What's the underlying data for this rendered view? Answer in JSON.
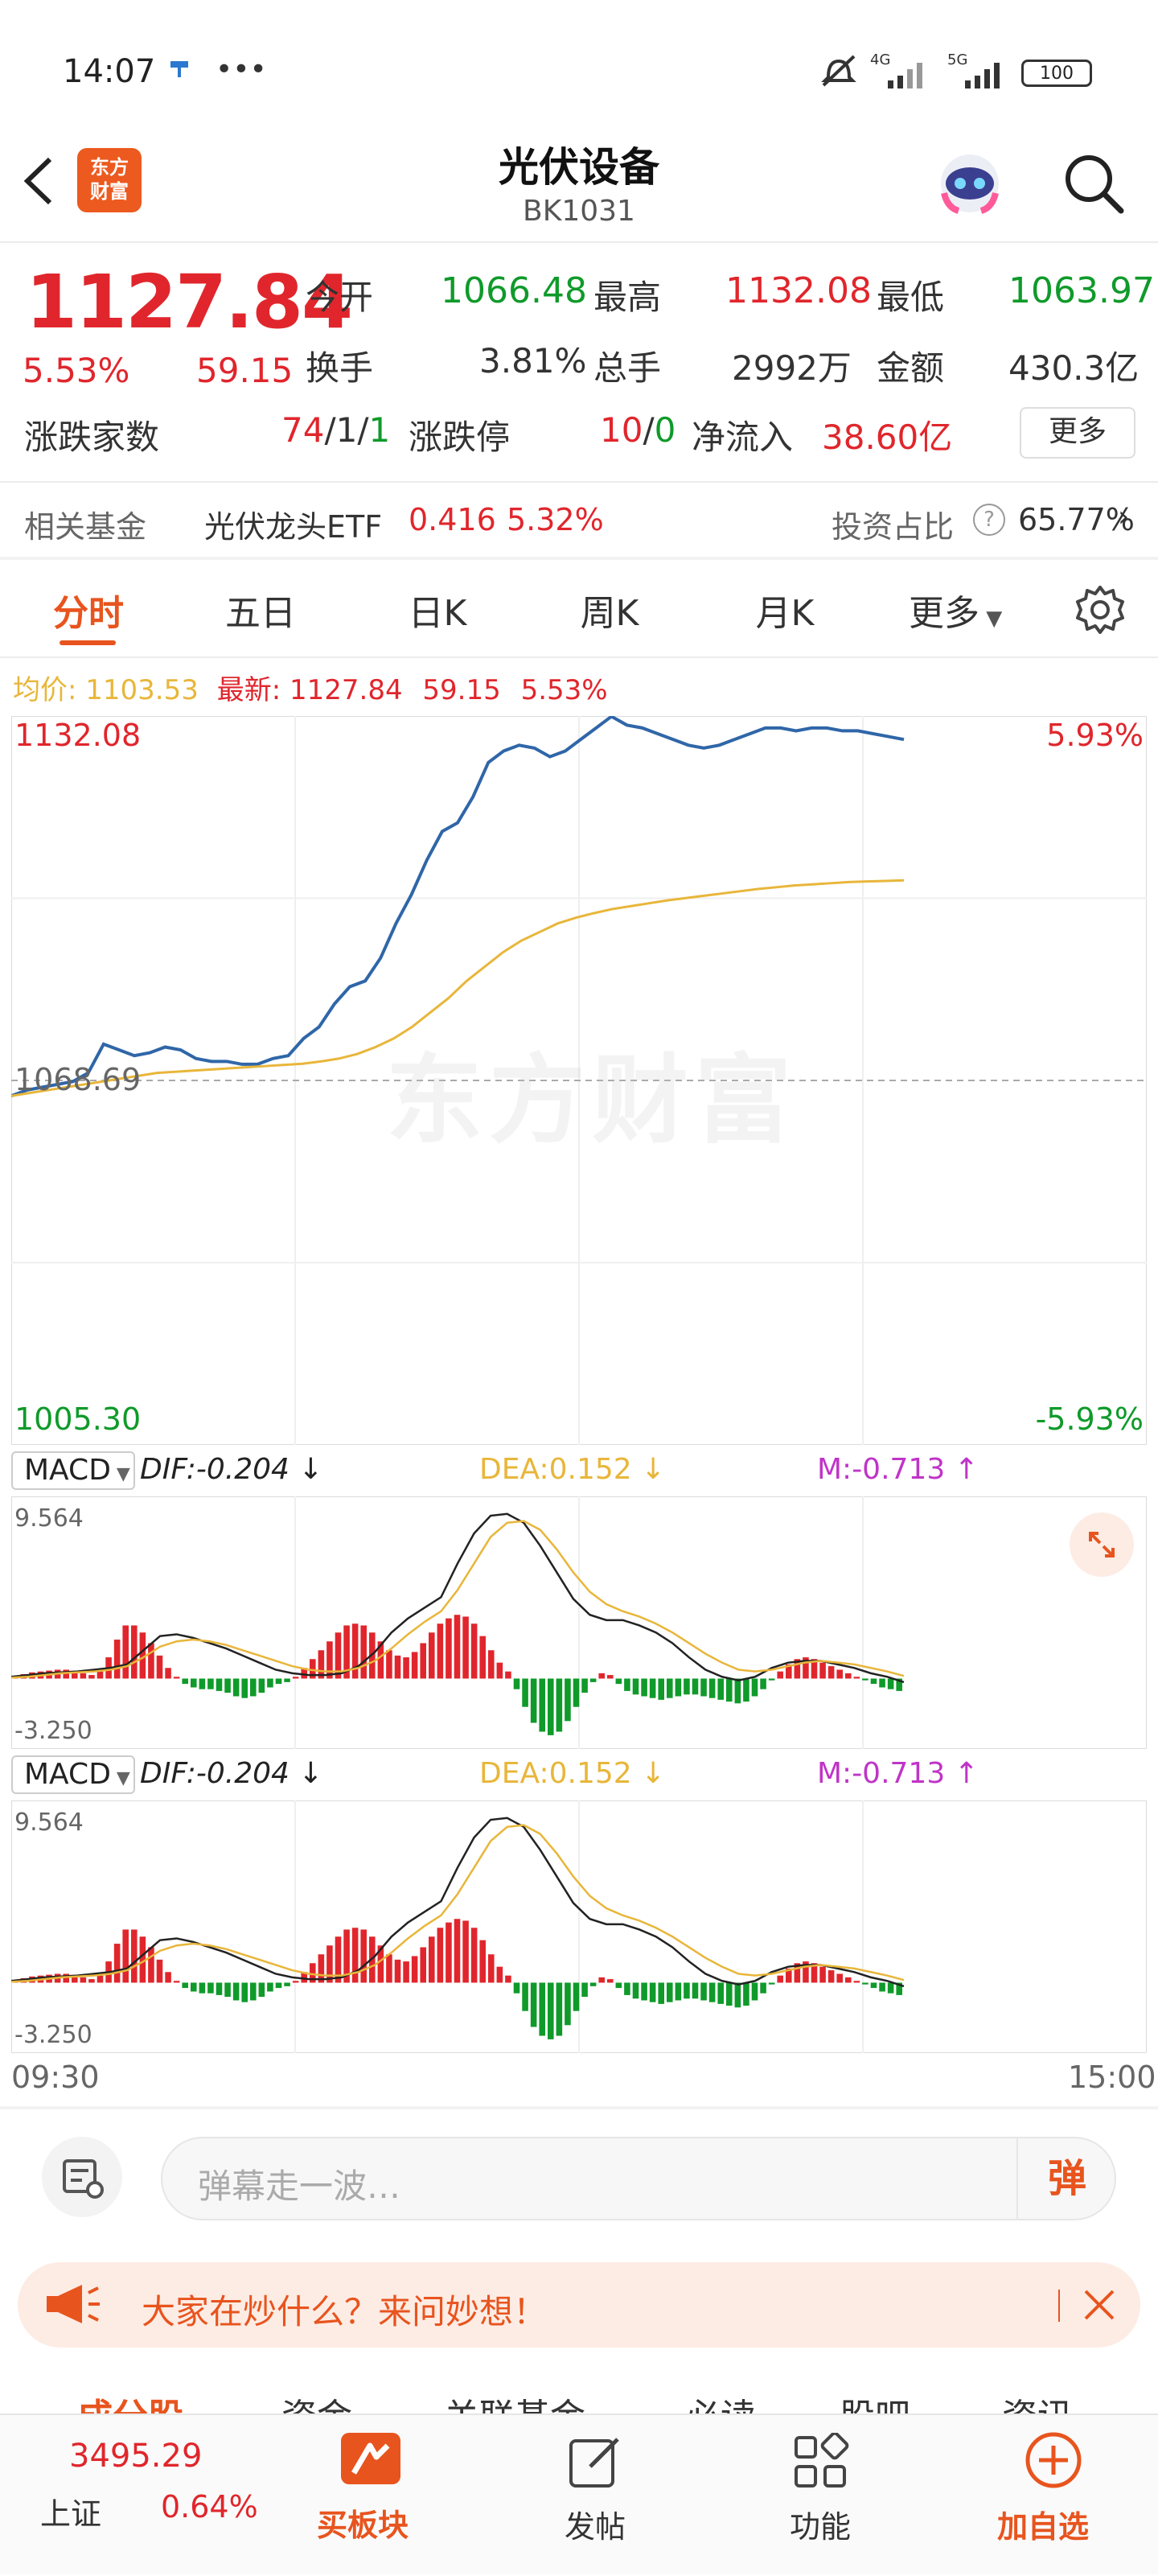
{
  "status_bar": {
    "time": "14:07",
    "battery": "100",
    "net1": "4G",
    "net2": "5G"
  },
  "header": {
    "logo_line1": "东方",
    "logo_line2": "财富",
    "title": "光伏设备",
    "code": "BK1031"
  },
  "quote": {
    "price": "1127.84",
    "change_pct": "5.53%",
    "change": "59.15",
    "open_label": "今开",
    "open": "1066.48",
    "high_label": "最高",
    "high": "1132.08",
    "low_label": "最低",
    "low": "1063.97",
    "turnover_label": "换手",
    "turnover": "3.81%",
    "volume_label": "总手",
    "volume": "2992万",
    "amount_label": "金额",
    "amount": "430.3亿",
    "breadth_label": "涨跌家数",
    "up": "74",
    "sep1": "/",
    "flat": "1",
    "sep2": "/",
    "down": "1",
    "limit_label": "涨跌停",
    "limit_up": "10",
    "limit_sep": "/",
    "limit_down": "0",
    "inflow_label": "净流入",
    "inflow": "38.60亿",
    "more": "更多"
  },
  "fund": {
    "label": "相关基金",
    "name": "光伏龙头ETF",
    "price": "0.416",
    "pct": "5.32%",
    "ratio_label": "投资占比",
    "ratio": "65.77%"
  },
  "tabs": [
    {
      "label": "分时"
    },
    {
      "label": "五日"
    },
    {
      "label": "日K"
    },
    {
      "label": "周K"
    },
    {
      "label": "月K"
    },
    {
      "label": "更多"
    }
  ],
  "chart_info": {
    "avg_label": "均价:",
    "avg": "1103.53",
    "latest_label": "最新:",
    "latest": "1127.84",
    "chg": "59.15",
    "pct": "5.53%"
  },
  "chart_data": [
    {
      "type": "line",
      "x_range": [
        "09:30",
        "15:00"
      ],
      "ylim": [
        1005.3,
        1132.08
      ],
      "y_top_label": "1132.08",
      "y_bottom_label": "1005.30",
      "y_top_pct": "5.93%",
      "y_bottom_pct": "-5.93%",
      "prev_close": 1068.69,
      "prev_close_label": "1068.69",
      "watermark": "东方财富",
      "series": [
        {
          "name": "price",
          "color": "#2f66a8",
          "values": [
            1066,
            1067,
            1067.5,
            1068,
            1068.5,
            1070,
            1075,
            1074,
            1073,
            1073.5,
            1074.5,
            1074,
            1072.5,
            1072,
            1072,
            1071.5,
            1071.5,
            1072.5,
            1073,
            1076,
            1078,
            1082,
            1085,
            1086,
            1090,
            1096,
            1101,
            1107,
            1112,
            1113.5,
            1118,
            1124,
            1126,
            1127,
            1126.5,
            1125,
            1126,
            1128,
            1130,
            1132,
            1130.5,
            1130,
            1129,
            1128,
            1127,
            1126.5,
            1127,
            1128,
            1129,
            1130,
            1130,
            1129.5,
            1130,
            1130,
            1129.5,
            1129.5,
            1129,
            1128.5,
            1128
          ]
        },
        {
          "name": "average",
          "color": "#e8b63a",
          "values": [
            1066,
            1066.5,
            1067,
            1067.5,
            1068,
            1068.5,
            1069,
            1069.5,
            1070,
            1070.2,
            1070.4,
            1070.6,
            1070.8,
            1071,
            1071.2,
            1071.4,
            1071.6,
            1072,
            1072.5,
            1073.3,
            1074.5,
            1076,
            1078,
            1080.5,
            1083,
            1086,
            1088.5,
            1091,
            1093,
            1094.5,
            1096,
            1097,
            1097.8,
            1098.5,
            1099,
            1099.5,
            1100,
            1100.4,
            1100.8,
            1101.2,
            1101.6,
            1102,
            1102.3,
            1102.6,
            1102.8,
            1103,
            1103.2,
            1103.3,
            1103.4,
            1103.5
          ]
        }
      ]
    },
    {
      "type": "bar",
      "indicator": "MACD",
      "dif_label": "DIF:-0.204",
      "dea_label": "DEA:0.152",
      "m_label": "M:-0.713",
      "ylim": [
        -3.25,
        9.564
      ],
      "y_top_label": "9.564",
      "y_bottom_label": "-3.250",
      "values": [
        0.1,
        0.25,
        0.35,
        0.4,
        0.45,
        0.5,
        0.5,
        0.4,
        0.3,
        0.2,
        0.4,
        1.2,
        2.2,
        3.0,
        3.0,
        2.6,
        2.0,
        1.3,
        0.6,
        0.1,
        -0.3,
        -0.5,
        -0.6,
        -0.6,
        -0.7,
        -0.8,
        -1.0,
        -1.1,
        -1.0,
        -0.8,
        -0.5,
        -0.3,
        -0.2,
        0.1,
        0.6,
        1.1,
        1.6,
        2.1,
        2.6,
        3.0,
        3.1,
        3.0,
        2.6,
        2.1,
        1.6,
        1.3,
        1.2,
        1.5,
        2.0,
        2.6,
        3.1,
        3.4,
        3.6,
        3.5,
        3.1,
        2.4,
        1.6,
        0.9,
        0.4,
        -0.6,
        -1.6,
        -2.5,
        -3.0,
        -3.2,
        -3.0,
        -2.4,
        -1.6,
        -0.8,
        -0.2,
        0.3,
        0.2,
        -0.3,
        -0.7,
        -0.9,
        -1.0,
        -1.1,
        -1.2,
        -1.1,
        -1.0,
        -0.9,
        -0.9,
        -1.0,
        -1.1,
        -1.2,
        -1.3,
        -1.4,
        -1.3,
        -1.0,
        -0.6,
        -0.1,
        0.4,
        0.8,
        1.1,
        1.2,
        1.1,
        0.9,
        0.7,
        0.5,
        0.3,
        0.1,
        -0.1,
        -0.3,
        -0.5,
        -0.6,
        -0.7
      ],
      "dif": [
        0.1,
        0.2,
        0.3,
        0.35,
        0.4,
        0.5,
        0.6,
        0.8,
        1.6,
        2.4,
        2.5,
        2.3,
        2.0,
        1.7,
        1.3,
        0.9,
        0.5,
        0.3,
        0.2,
        0.2,
        0.3,
        0.7,
        1.5,
        2.6,
        3.4,
        4.0,
        4.6,
        6.5,
        8.2,
        9.2,
        9.3,
        8.8,
        7.5,
        6.0,
        4.5,
        3.6,
        3.3,
        3.3,
        3.0,
        2.6,
        2.0,
        1.2,
        0.5,
        0.1,
        -0.1,
        0.1,
        0.6,
        0.9,
        1.0,
        1.0,
        0.8,
        0.6,
        0.3,
        0.1,
        -0.2
      ],
      "dea": [
        0.05,
        0.1,
        0.2,
        0.3,
        0.35,
        0.4,
        0.5,
        0.7,
        1.2,
        1.8,
        2.1,
        2.2,
        2.1,
        1.9,
        1.6,
        1.3,
        1.0,
        0.7,
        0.5,
        0.4,
        0.4,
        0.6,
        1.0,
        1.7,
        2.5,
        3.2,
        3.8,
        5.0,
        6.5,
        8.0,
        8.8,
        8.9,
        8.4,
        7.3,
        6.0,
        4.9,
        4.2,
        3.8,
        3.5,
        3.1,
        2.6,
        2.0,
        1.4,
        0.9,
        0.5,
        0.4,
        0.5,
        0.7,
        0.9,
        1.0,
        0.9,
        0.8,
        0.6,
        0.4,
        0.15
      ]
    }
  ],
  "time_axis": {
    "start": "09:30",
    "end": "15:00"
  },
  "danmaku": {
    "placeholder": "弹幕走一波…",
    "button": "弹"
  },
  "banner": {
    "text": "大家在炒什么？来问妙想！"
  },
  "sub_tabs": [
    {
      "label": "成分股"
    },
    {
      "label": "资金"
    },
    {
      "label": "关联基金"
    },
    {
      "label": "必读"
    },
    {
      "label": "股吧"
    },
    {
      "label": "资讯"
    }
  ],
  "bottom_nav": {
    "index_value": "3495.29",
    "index_name": "上证",
    "index_pct": "0.64%",
    "board": "买板块",
    "post": "发帖",
    "func": "功能",
    "add": "加自选"
  },
  "colors": {
    "up": "#e0262c",
    "down": "#0f9a2a",
    "accent": "#e8541e",
    "price_line": "#2f66a8",
    "avg_line": "#e8b63a"
  }
}
